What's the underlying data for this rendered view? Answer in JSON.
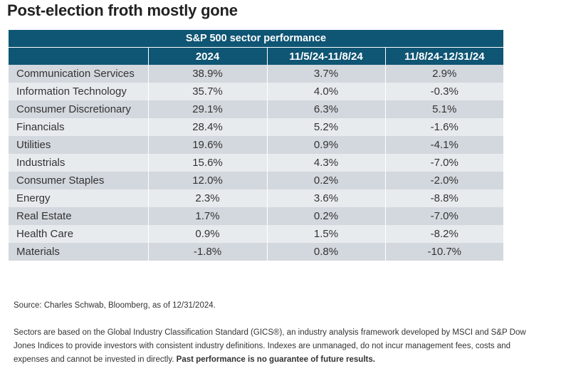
{
  "title": "Post-election froth mostly gone",
  "chart_data": {
    "type": "table",
    "caption": "S&P 500 sector performance",
    "columns": [
      "",
      "2024",
      "11/5/24-11/8/24",
      "11/8/24-12/31/24"
    ],
    "rows": [
      [
        "Communication Services",
        "38.9%",
        "3.7%",
        "2.9%"
      ],
      [
        "Information Technology",
        "35.7%",
        "4.0%",
        "-0.3%"
      ],
      [
        "Consumer Discretionary",
        "29.1%",
        "6.3%",
        "5.1%"
      ],
      [
        "Financials",
        "28.4%",
        "5.2%",
        "-1.6%"
      ],
      [
        "Utilities",
        "19.6%",
        "0.9%",
        "-4.1%"
      ],
      [
        "Industrials",
        "15.6%",
        "4.3%",
        "-7.0%"
      ],
      [
        "Consumer Staples",
        "12.0%",
        "0.2%",
        "-2.0%"
      ],
      [
        "Energy",
        "2.3%",
        "3.6%",
        "-8.8%"
      ],
      [
        "Real Estate",
        "1.7%",
        "0.2%",
        "-7.0%"
      ],
      [
        "Health Care",
        "0.9%",
        "1.5%",
        "-8.2%"
      ],
      [
        "Materials",
        "-1.8%",
        "0.8%",
        "-10.7%"
      ]
    ]
  },
  "source": "Source: Charles Schwab, Bloomberg, as of 12/31/2024.",
  "note": {
    "text": "Sectors are based on the Global Industry Classification Standard (GICS®), an industry analysis framework developed by MSCI and S&P Dow Jones Indices to provide investors with consistent industry definitions. Indexes are unmanaged, do not incur management fees, costs and expenses and cannot be invested in directly.",
    "bold": "Past performance is no guarantee of future results."
  },
  "colors": {
    "header_bg": "#0f5574",
    "row_dark": "#d3d8de",
    "row_light": "#e8ebee"
  }
}
